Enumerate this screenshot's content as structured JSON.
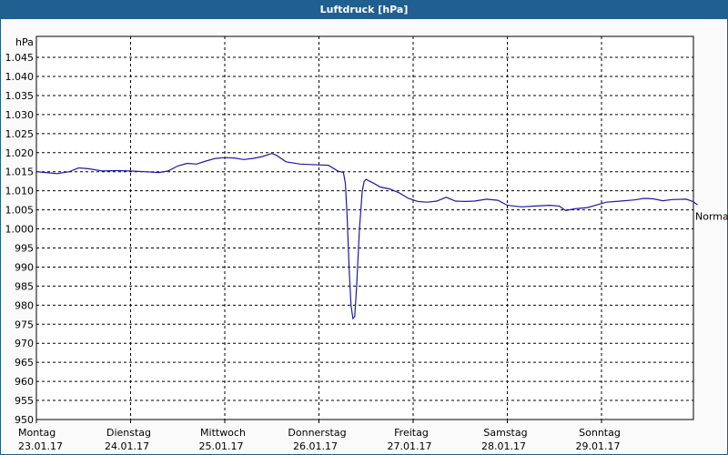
{
  "window": {
    "title": "Luftdruck [hPa]"
  },
  "chart_data": {
    "type": "line",
    "title": "Luftdruck [hPa]",
    "ylabel": "hPa",
    "xlabel": "",
    "ylim": [
      950,
      1050
    ],
    "y_ticks": [
      950,
      955,
      960,
      965,
      970,
      975,
      980,
      985,
      990,
      995,
      1000,
      1005,
      1010,
      1015,
      1020,
      1025,
      1030,
      1035,
      1040,
      1045
    ],
    "y_tick_labels": [
      "950",
      "955",
      "960",
      "965",
      "970",
      "975",
      "980",
      "985",
      "990",
      "995",
      "1.000",
      "1.005",
      "1.010",
      "1.015",
      "1.020",
      "1.025",
      "1.030",
      "1.035",
      "1.040",
      "1.045"
    ],
    "x_days": [
      {
        "day": "Montag",
        "date": "23.01.17"
      },
      {
        "day": "Dienstag",
        "date": "24.01.17"
      },
      {
        "day": "Mittwoch",
        "date": "25.01.17"
      },
      {
        "day": "Donnerstag",
        "date": "26.01.17"
      },
      {
        "day": "Freitag",
        "date": "27.01.17"
      },
      {
        "day": "Samstag",
        "date": "28.01.17"
      },
      {
        "day": "Sonntag",
        "date": "29.01.17"
      }
    ],
    "xlim_days": [
      0,
      7.1
    ],
    "grid": true,
    "reference_label": "Normal",
    "reference_value": 1003.3,
    "series": [
      {
        "color": "#1a1aa8",
        "points": [
          [
            0.0,
            1015.0
          ],
          [
            0.1,
            1014.8
          ],
          [
            0.22,
            1014.5
          ],
          [
            0.35,
            1015.0
          ],
          [
            0.45,
            1016.0
          ],
          [
            0.55,
            1015.8
          ],
          [
            0.7,
            1015.2
          ],
          [
            0.85,
            1015.3
          ],
          [
            1.0,
            1015.2
          ],
          [
            1.15,
            1015.0
          ],
          [
            1.3,
            1014.8
          ],
          [
            1.4,
            1015.2
          ],
          [
            1.5,
            1016.5
          ],
          [
            1.6,
            1017.2
          ],
          [
            1.7,
            1017.0
          ],
          [
            1.8,
            1017.8
          ],
          [
            1.9,
            1018.5
          ],
          [
            2.0,
            1018.7
          ],
          [
            2.1,
            1018.6
          ],
          [
            2.2,
            1018.2
          ],
          [
            2.3,
            1018.5
          ],
          [
            2.4,
            1019.0
          ],
          [
            2.5,
            1019.8
          ],
          [
            2.55,
            1019.3
          ],
          [
            2.65,
            1017.6
          ],
          [
            2.8,
            1017.0
          ],
          [
            3.0,
            1016.8
          ],
          [
            3.1,
            1016.7
          ],
          [
            3.2,
            1015.2
          ],
          [
            3.26,
            1014.8
          ],
          [
            3.28,
            1012.0
          ],
          [
            3.3,
            1003.0
          ],
          [
            3.32,
            990.0
          ],
          [
            3.34,
            980.0
          ],
          [
            3.36,
            976.5
          ],
          [
            3.38,
            977.0
          ],
          [
            3.4,
            985.0
          ],
          [
            3.43,
            1000.0
          ],
          [
            3.46,
            1010.0
          ],
          [
            3.48,
            1012.5
          ],
          [
            3.5,
            1013.0
          ],
          [
            3.58,
            1012.0
          ],
          [
            3.65,
            1011.0
          ],
          [
            3.75,
            1010.5
          ],
          [
            3.85,
            1009.5
          ],
          [
            3.95,
            1008.0
          ],
          [
            4.05,
            1007.2
          ],
          [
            4.15,
            1007.0
          ],
          [
            4.25,
            1007.3
          ],
          [
            4.35,
            1008.3
          ],
          [
            4.45,
            1007.3
          ],
          [
            4.55,
            1007.2
          ],
          [
            4.65,
            1007.3
          ],
          [
            4.78,
            1007.8
          ],
          [
            4.9,
            1007.5
          ],
          [
            5.0,
            1006.2
          ],
          [
            5.15,
            1005.8
          ],
          [
            5.3,
            1006.0
          ],
          [
            5.45,
            1006.2
          ],
          [
            5.55,
            1006.0
          ],
          [
            5.62,
            1004.8
          ],
          [
            5.72,
            1005.3
          ],
          [
            5.85,
            1005.6
          ],
          [
            5.95,
            1006.3
          ],
          [
            6.05,
            1007.0
          ],
          [
            6.2,
            1007.3
          ],
          [
            6.35,
            1007.6
          ],
          [
            6.45,
            1008.0
          ],
          [
            6.55,
            1007.9
          ],
          [
            6.65,
            1007.4
          ],
          [
            6.75,
            1007.7
          ],
          [
            6.9,
            1007.8
          ],
          [
            6.97,
            1007.2
          ],
          [
            7.02,
            1006.3
          ]
        ]
      }
    ]
  }
}
